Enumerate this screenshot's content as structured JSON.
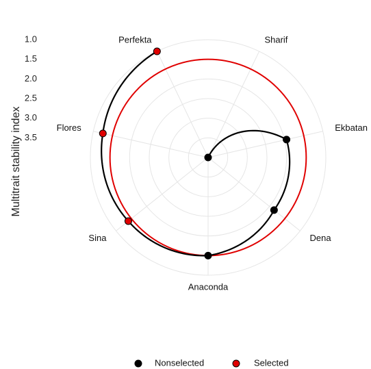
{
  "chart_data": {
    "type": "radar",
    "ylabel": "Multitrait stability index",
    "radial_ticks": [
      "1.0",
      "1.5",
      "2.0",
      "2.5",
      "3.0",
      "3.5"
    ],
    "categories": [
      "Sharif",
      "Ekbatan",
      "Dena",
      "Anaconda",
      "Sina",
      "Flores",
      "Perfekta"
    ],
    "values": [
      4.0,
      1.95,
      1.85,
      1.5,
      1.4,
      1.25,
      1.0
    ],
    "selected": [
      false,
      false,
      false,
      false,
      true,
      true,
      true
    ],
    "cutoff": 1.5,
    "radial_axis": {
      "inner": 4.0,
      "outer": 1.0,
      "reversed": true
    },
    "grid": true,
    "legend": {
      "position": "bottom",
      "items": [
        {
          "label": "Nonselected",
          "color": "#000000"
        },
        {
          "label": "Selected",
          "color": "#e00000"
        }
      ]
    },
    "colors": {
      "line": "#000000",
      "cutoff_circle": "#e00000",
      "grid": "#e5e5e5"
    }
  }
}
